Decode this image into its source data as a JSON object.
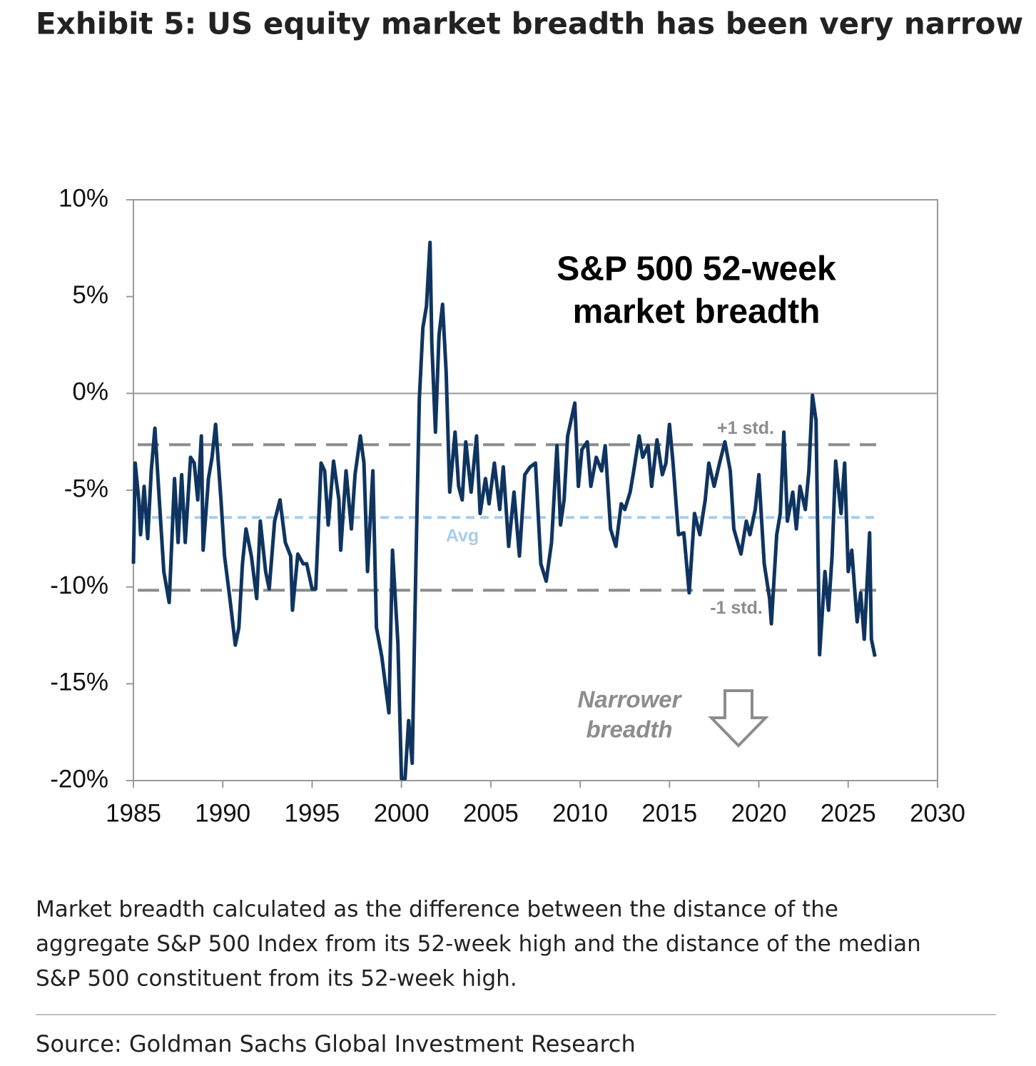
{
  "title": "Exhibit 5: US equity market breadth has been very narrow",
  "chart_data": {
    "type": "line",
    "annotation_lines": [
      "S&P 500 52-week",
      "market breadth"
    ],
    "direction_note_lines": [
      "Narrower",
      "breadth"
    ],
    "x": [
      1985.0,
      1985.1,
      1985.3,
      1985.4,
      1985.6,
      1985.8,
      1986.0,
      1986.2,
      1986.4,
      1986.7,
      1987.0,
      1987.3,
      1987.5,
      1987.7,
      1987.9,
      1988.2,
      1988.4,
      1988.6,
      1988.8,
      1988.9,
      1989.2,
      1989.4,
      1989.6,
      1989.9,
      1990.1,
      1990.4,
      1990.7,
      1990.9,
      1991.1,
      1991.3,
      1991.6,
      1991.9,
      1992.1,
      1992.4,
      1992.6,
      1992.9,
      1993.2,
      1993.5,
      1993.8,
      1993.9,
      1994.2,
      1994.5,
      1994.7,
      1995.0,
      1995.2,
      1995.5,
      1995.7,
      1995.9,
      1996.2,
      1996.5,
      1996.6,
      1996.9,
      1997.2,
      1997.4,
      1997.7,
      1997.9,
      1998.1,
      1998.4,
      1998.6,
      1998.9,
      1999.3,
      1999.5,
      1999.8,
      2000.0,
      2000.2,
      2000.4,
      2000.6,
      2000.8,
      2001.0,
      2001.2,
      2001.4,
      2001.6,
      2001.7,
      2001.9,
      2002.1,
      2002.3,
      2002.5,
      2002.7,
      2003.0,
      2003.2,
      2003.4,
      2003.6,
      2003.9,
      2004.2,
      2004.4,
      2004.7,
      2004.9,
      2005.2,
      2005.5,
      2005.7,
      2006.0,
      2006.3,
      2006.6,
      2006.9,
      2007.2,
      2007.5,
      2007.8,
      2008.1,
      2008.4,
      2008.7,
      2008.9,
      2009.1,
      2009.3,
      2009.7,
      2009.9,
      2010.1,
      2010.4,
      2010.6,
      2010.9,
      2011.2,
      2011.4,
      2011.7,
      2012.0,
      2012.3,
      2012.5,
      2012.8,
      2013.0,
      2013.3,
      2013.5,
      2013.8,
      2014.0,
      2014.3,
      2014.6,
      2014.8,
      2015.0,
      2015.2,
      2015.5,
      2015.8,
      2016.1,
      2016.4,
      2016.7,
      2017.0,
      2017.2,
      2017.5,
      2017.8,
      2018.1,
      2018.4,
      2018.6,
      2019.0,
      2019.3,
      2019.5,
      2019.8,
      2020.0,
      2020.3,
      2020.6,
      2020.7,
      2021.0,
      2021.2,
      2021.4,
      2021.6,
      2021.9,
      2022.1,
      2022.3,
      2022.6,
      2022.8,
      2023.0,
      2023.2,
      2023.4,
      2023.7,
      2023.9,
      2024.1,
      2024.3,
      2024.6,
      2024.8,
      2025.0,
      2025.2,
      2025.5,
      2025.7,
      2025.9,
      2026.2,
      2026.3,
      2026.5
    ],
    "series": [
      {
        "color": "#0f3460",
        "values": [
          -8.8,
          -3.6,
          -5.5,
          -7.3,
          -4.8,
          -7.5,
          -4.0,
          -1.8,
          -4.8,
          -9.2,
          -10.8,
          -4.4,
          -7.7,
          -4.2,
          -7.7,
          -3.3,
          -3.6,
          -5.5,
          -2.2,
          -8.1,
          -4.4,
          -3.3,
          -1.6,
          -5.5,
          -8.4,
          -10.6,
          -13.0,
          -12.1,
          -8.8,
          -7.0,
          -8.4,
          -10.6,
          -6.6,
          -9.2,
          -10.1,
          -6.6,
          -5.5,
          -7.7,
          -8.4,
          -11.2,
          -8.3,
          -8.8,
          -8.8,
          -10.1,
          -10.1,
          -3.6,
          -4.0,
          -6.8,
          -3.5,
          -5.5,
          -8.1,
          -4.0,
          -7.0,
          -4.2,
          -2.2,
          -3.6,
          -9.2,
          -4.0,
          -12.1,
          -13.6,
          -16.5,
          -8.1,
          -12.9,
          -19.9,
          -19.9,
          -16.9,
          -19.1,
          -9.2,
          -0.3,
          3.4,
          4.5,
          7.8,
          2.6,
          -2.0,
          3.0,
          4.6,
          1.1,
          -5.1,
          -2.0,
          -4.8,
          -5.5,
          -2.5,
          -5.1,
          -2.2,
          -6.2,
          -4.4,
          -5.7,
          -3.6,
          -6.0,
          -3.8,
          -7.9,
          -5.1,
          -8.4,
          -4.2,
          -3.8,
          -3.6,
          -8.8,
          -9.7,
          -7.7,
          -2.7,
          -6.8,
          -5.5,
          -2.2,
          -0.5,
          -4.8,
          -2.9,
          -2.5,
          -4.8,
          -3.3,
          -4.0,
          -2.7,
          -7.0,
          -7.9,
          -5.7,
          -6.0,
          -5.1,
          -4.0,
          -2.2,
          -3.3,
          -2.7,
          -4.8,
          -2.4,
          -4.2,
          -3.6,
          -1.6,
          -3.6,
          -7.3,
          -7.2,
          -10.3,
          -6.2,
          -7.3,
          -5.5,
          -3.6,
          -4.8,
          -3.6,
          -2.5,
          -4.0,
          -7.0,
          -8.3,
          -6.6,
          -7.3,
          -6.0,
          -4.2,
          -8.8,
          -10.6,
          -11.9,
          -7.3,
          -6.2,
          -2.0,
          -6.6,
          -5.1,
          -7.0,
          -4.8,
          -6.0,
          -4.0,
          -0.1,
          -1.4,
          -13.5,
          -9.2,
          -11.2,
          -8.4,
          -3.5,
          -6.2,
          -3.6,
          -9.2,
          -8.1,
          -11.8,
          -10.3,
          -12.7,
          -7.2,
          -12.7,
          -13.6
        ]
      }
    ],
    "reference_lines": [
      {
        "label": "+1 std.",
        "value": -2.65,
        "color": "#8c8c8c"
      },
      {
        "label": "Avg",
        "value": -6.41,
        "color": "#a9cdea"
      },
      {
        "label": "-1 std.",
        "value": -10.17,
        "color": "#8c8c8c"
      }
    ],
    "xlim": [
      1985,
      2030
    ],
    "xticks": [
      1985,
      1990,
      1995,
      2000,
      2005,
      2010,
      2015,
      2020,
      2025,
      2030
    ],
    "ylim": [
      -20,
      10
    ],
    "yticks": [
      {
        "value": -20,
        "label": "-20%"
      },
      {
        "value": -15,
        "label": "-15%"
      },
      {
        "value": -10,
        "label": "-10%"
      },
      {
        "value": -5,
        "label": "-5%"
      },
      {
        "value": 0,
        "label": "0%"
      },
      {
        "value": 5,
        "label": "5%"
      },
      {
        "value": 10,
        "label": "10%"
      }
    ]
  },
  "footnote_lines": [
    "Market breadth calculated as the difference between the distance of the",
    "aggregate S&P 500 Index from its 52-week high and the distance of the median",
    "S&P 500 constituent from its 52-week high."
  ],
  "source": "Source: Goldman Sachs Global Investment Research"
}
